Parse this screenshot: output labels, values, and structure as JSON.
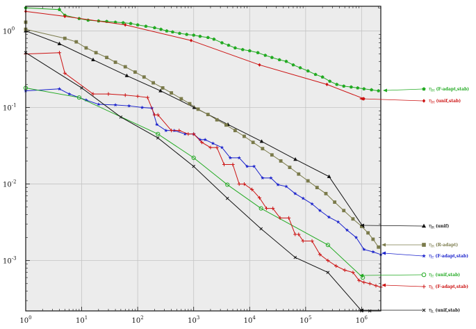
{
  "chart_data": {
    "type": "line",
    "title": "",
    "xlabel": "",
    "ylabel": "",
    "x_scale": "log",
    "y_scale": "log",
    "xlim": [
      1,
      2200000
    ],
    "ylim": [
      0.00022,
      2.1
    ],
    "grid": true,
    "legend_position": "right-outside",
    "x_ticks": [
      {
        "value": 1,
        "base": "10",
        "exp": "0"
      },
      {
        "value": 10,
        "base": "10",
        "exp": "1"
      },
      {
        "value": 100,
        "base": "10",
        "exp": "2"
      },
      {
        "value": 1000,
        "base": "10",
        "exp": "3"
      },
      {
        "value": 10000,
        "base": "10",
        "exp": "4"
      },
      {
        "value": 100000,
        "base": "10",
        "exp": "5"
      },
      {
        "value": 1000000,
        "base": "10",
        "exp": "6"
      }
    ],
    "y_ticks": [
      {
        "value": 1,
        "base": "10",
        "exp": "0"
      },
      {
        "value": 0.1,
        "base": "10",
        "exp": "-1"
      },
      {
        "value": 0.01,
        "base": "10",
        "exp": "-2"
      },
      {
        "value": 0.001,
        "base": "10",
        "exp": "-3"
      }
    ],
    "series": [
      {
        "id": "etaH_fadapt",
        "name": "η_H (F-adapt,stab)",
        "sym": "η",
        "sub": "H",
        "desc": "(F-adapt,stab)",
        "color": "#22aa22",
        "marker": "pentagon-filled",
        "points": [
          [
            1,
            2.0
          ],
          [
            4,
            1.9
          ],
          [
            5,
            1.6
          ],
          [
            9,
            1.45
          ],
          [
            13,
            1.38
          ],
          [
            20,
            1.35
          ],
          [
            28,
            1.33
          ],
          [
            40,
            1.3
          ],
          [
            55,
            1.28
          ],
          [
            75,
            1.25
          ],
          [
            100,
            1.2
          ],
          [
            140,
            1.15
          ],
          [
            200,
            1.1
          ],
          [
            260,
            1.05
          ],
          [
            330,
            1.0
          ],
          [
            420,
            0.97
          ],
          [
            560,
            0.93
          ],
          [
            750,
            0.9
          ],
          [
            1000,
            0.88
          ],
          [
            1300,
            0.85
          ],
          [
            1800,
            0.82
          ],
          [
            2300,
            0.78
          ],
          [
            3200,
            0.7
          ],
          [
            4200,
            0.65
          ],
          [
            5500,
            0.6
          ],
          [
            7500,
            0.57
          ],
          [
            10000,
            0.55
          ],
          [
            14000,
            0.52
          ],
          [
            19000,
            0.48
          ],
          [
            25000,
            0.45
          ],
          [
            34000,
            0.42
          ],
          [
            45000,
            0.4
          ],
          [
            60000,
            0.36
          ],
          [
            80000,
            0.33
          ],
          [
            110000,
            0.3
          ],
          [
            150000,
            0.27
          ],
          [
            200000,
            0.25
          ],
          [
            270000,
            0.22
          ],
          [
            360000,
            0.2
          ],
          [
            480000,
            0.19
          ],
          [
            650000,
            0.185
          ],
          [
            850000,
            0.18
          ],
          [
            1100000,
            0.175
          ],
          [
            1500000,
            0.17
          ],
          [
            2000000,
            0.165
          ]
        ]
      },
      {
        "id": "etaH_unif",
        "name": "η_H (unif,stab)",
        "sym": "η",
        "sub": "H",
        "desc": "(unif,stab)",
        "color": "#cc1111",
        "marker": "diamond-filled",
        "points": [
          [
            1,
            1.8
          ],
          [
            5,
            1.55
          ],
          [
            60,
            1.2
          ],
          [
            900,
            0.75
          ],
          [
            15000,
            0.36
          ],
          [
            240000,
            0.2
          ],
          [
            1100000,
            0.13
          ]
        ]
      },
      {
        "id": "etaR_unif",
        "name": "η_R (unif)",
        "sym": "η",
        "sub": "R",
        "desc": "(unif)",
        "color": "#111111",
        "marker": "triangle-filled",
        "points": [
          [
            1,
            1.0
          ],
          [
            4,
            0.68
          ],
          [
            16,
            0.42
          ],
          [
            64,
            0.26
          ],
          [
            256,
            0.165
          ],
          [
            1024,
            0.1
          ],
          [
            4096,
            0.06
          ],
          [
            16384,
            0.036
          ],
          [
            65536,
            0.021
          ],
          [
            262144,
            0.0125
          ],
          [
            1048576,
            0.0028
          ]
        ]
      },
      {
        "id": "etaR_radapt",
        "name": "η_R (R-adapt)",
        "sym": "η",
        "sub": "R",
        "desc": "(R-adapt)",
        "color": "#7a7a4a",
        "marker": "square-filled",
        "points": [
          [
            1,
            1.3
          ],
          [
            1,
            1.05
          ],
          [
            5,
            0.8
          ],
          [
            8,
            0.72
          ],
          [
            12,
            0.6
          ],
          [
            18,
            0.52
          ],
          [
            28,
            0.45
          ],
          [
            40,
            0.39
          ],
          [
            60,
            0.34
          ],
          [
            90,
            0.29
          ],
          [
            130,
            0.25
          ],
          [
            190,
            0.21
          ],
          [
            280,
            0.18
          ],
          [
            400,
            0.155
          ],
          [
            600,
            0.13
          ],
          [
            850,
            0.112
          ],
          [
            1200,
            0.095
          ],
          [
            1800,
            0.081
          ],
          [
            2600,
            0.069
          ],
          [
            3800,
            0.059
          ],
          [
            5500,
            0.05
          ],
          [
            8000,
            0.042
          ],
          [
            11500,
            0.035
          ],
          [
            17000,
            0.029
          ],
          [
            25000,
            0.024
          ],
          [
            36000,
            0.02
          ],
          [
            52000,
            0.0165
          ],
          [
            75000,
            0.0135
          ],
          [
            110000,
            0.011
          ],
          [
            160000,
            0.009
          ],
          [
            230000,
            0.0075
          ],
          [
            330000,
            0.0058
          ],
          [
            480000,
            0.0045
          ],
          [
            700000,
            0.0035
          ],
          [
            1000000,
            0.0028
          ],
          [
            1300000,
            0.0023
          ],
          [
            1600000,
            0.0019
          ],
          [
            2000000,
            0.0015
          ]
        ]
      },
      {
        "id": "etaT_fadapt",
        "name": "η_T (F-adapt,stab)",
        "sym": "η",
        "sub": "T",
        "desc": "(F-adapt,stab)",
        "color": "#1a22cc",
        "marker": "star-filled",
        "points": [
          [
            1,
            0.165
          ],
          [
            4,
            0.175
          ],
          [
            6,
            0.15
          ],
          [
            12,
            0.125
          ],
          [
            20,
            0.11
          ],
          [
            40,
            0.108
          ],
          [
            70,
            0.105
          ],
          [
            120,
            0.1
          ],
          [
            180,
            0.098
          ],
          [
            220,
            0.06
          ],
          [
            320,
            0.05
          ],
          [
            450,
            0.05
          ],
          [
            700,
            0.045
          ],
          [
            1000,
            0.045
          ],
          [
            1300,
            0.038
          ],
          [
            1600,
            0.038
          ],
          [
            2200,
            0.034
          ],
          [
            3200,
            0.03
          ],
          [
            4500,
            0.022
          ],
          [
            6500,
            0.022
          ],
          [
            9000,
            0.017
          ],
          [
            12000,
            0.017
          ],
          [
            17000,
            0.012
          ],
          [
            24000,
            0.012
          ],
          [
            32000,
            0.0098
          ],
          [
            45000,
            0.0093
          ],
          [
            65000,
            0.0075
          ],
          [
            90000,
            0.0065
          ],
          [
            130000,
            0.0055
          ],
          [
            180000,
            0.0045
          ],
          [
            260000,
            0.0037
          ],
          [
            380000,
            0.0032
          ],
          [
            550000,
            0.0025
          ],
          [
            800000,
            0.002
          ],
          [
            1100000,
            0.0014
          ],
          [
            1600000,
            0.0013
          ],
          [
            2200000,
            0.0012
          ]
        ]
      },
      {
        "id": "etaT_unif",
        "name": "η_T (unif,stab)",
        "sym": "η",
        "sub": "T",
        "desc": "(unif,stab)",
        "color": "#22aa22",
        "marker": "circle-open",
        "points": [
          [
            1,
            0.18
          ],
          [
            9,
            0.135
          ],
          [
            230,
            0.045
          ],
          [
            1000,
            0.022
          ],
          [
            4000,
            0.0098
          ],
          [
            16000,
            0.0048
          ],
          [
            250000,
            0.0016
          ],
          [
            1050000,
            0.0006
          ]
        ]
      },
      {
        "id": "etaL_fadapt",
        "name": "η_L (F-adapt,stab)",
        "sym": "η",
        "sub": "L",
        "desc": "(F-adapt,stab)",
        "color": "#cc1111",
        "marker": "plus",
        "points": [
          [
            1,
            0.5
          ],
          [
            4,
            0.52
          ],
          [
            5,
            0.28
          ],
          [
            16,
            0.15
          ],
          [
            30,
            0.15
          ],
          [
            60,
            0.145
          ],
          [
            100,
            0.14
          ],
          [
            150,
            0.135
          ],
          [
            200,
            0.08
          ],
          [
            230,
            0.08
          ],
          [
            400,
            0.05
          ],
          [
            550,
            0.05
          ],
          [
            800,
            0.045
          ],
          [
            1000,
            0.045
          ],
          [
            1400,
            0.035
          ],
          [
            2000,
            0.03
          ],
          [
            2600,
            0.03
          ],
          [
            3500,
            0.018
          ],
          [
            5000,
            0.018
          ],
          [
            6500,
            0.01
          ],
          [
            8000,
            0.01
          ],
          [
            11000,
            0.0085
          ],
          [
            15000,
            0.0066
          ],
          [
            20000,
            0.0048
          ],
          [
            26000,
            0.0048
          ],
          [
            35000,
            0.0036
          ],
          [
            50000,
            0.0036
          ],
          [
            65000,
            0.0022
          ],
          [
            75000,
            0.0022
          ],
          [
            90000,
            0.0018
          ],
          [
            130000,
            0.0018
          ],
          [
            180000,
            0.0012
          ],
          [
            250000,
            0.001
          ],
          [
            350000,
            0.00085
          ],
          [
            500000,
            0.00075
          ],
          [
            700000,
            0.0007
          ],
          [
            900000,
            0.00055
          ],
          [
            1100000,
            0.00052
          ],
          [
            1400000,
            0.0005
          ],
          [
            1800000,
            0.00047
          ],
          [
            2200000,
            0.00045
          ]
        ]
      },
      {
        "id": "etaL_unif",
        "name": "η_L (unif,stab)",
        "sym": "η",
        "sub": "L",
        "desc": "(unif,stab)",
        "color": "#111111",
        "marker": "cross",
        "points": [
          [
            1,
            0.52
          ],
          [
            10,
            0.18
          ],
          [
            50,
            0.075
          ],
          [
            230,
            0.04
          ],
          [
            1000,
            0.017
          ],
          [
            4000,
            0.0065
          ],
          [
            16000,
            0.0026
          ],
          [
            65000,
            0.0011
          ],
          [
            250000,
            0.0007
          ],
          [
            1000000,
            0.00022
          ],
          [
            1400000,
            0.00022
          ]
        ]
      }
    ],
    "legend_order": [
      "etaH_fadapt",
      "etaH_unif",
      "etaR_unif",
      "etaR_radapt",
      "etaT_fadapt",
      "etaT_unif",
      "etaL_fadapt",
      "etaL_unif"
    ]
  }
}
